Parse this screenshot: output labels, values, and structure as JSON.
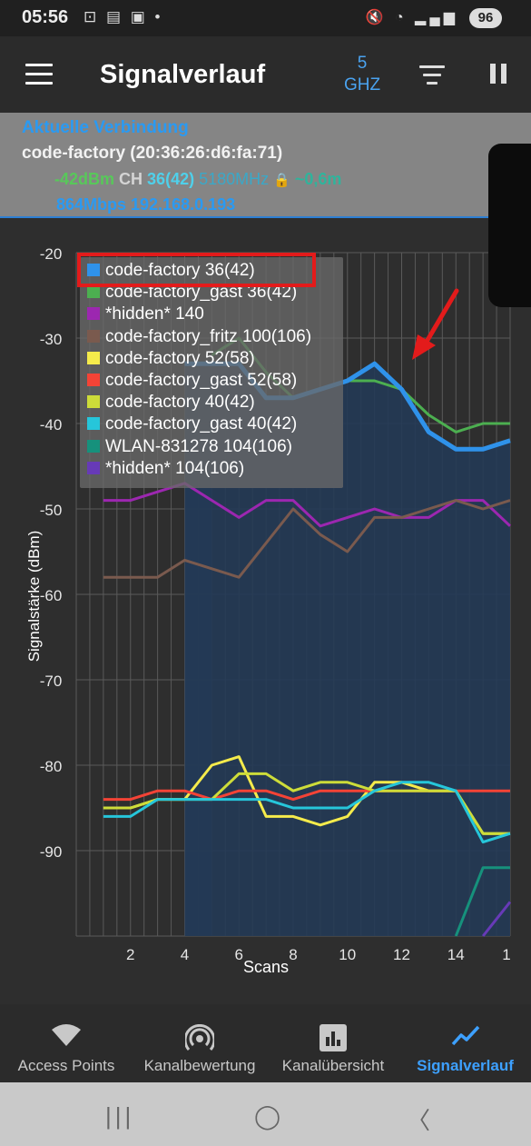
{
  "status_bar": {
    "time": "05:56",
    "battery": "96"
  },
  "app_bar": {
    "title": "Signalverlauf",
    "band_line1": "5",
    "band_line2": "GHZ"
  },
  "connection": {
    "header": "Aktuelle Verbindung",
    "ssid": "code-factory (20:36:26:d6:fa:71)",
    "signal": "-42dBm",
    "ch_label": "CH",
    "channel": "36(42)",
    "frequency": "5180MHz",
    "distance": "~0,6m",
    "speed_ip": "864Mbps 192.168.0.193"
  },
  "chart_data": {
    "type": "line",
    "ylabel": "Signalstärke (dBm)",
    "xlabel": "Scans",
    "ylim": [
      -100,
      -20
    ],
    "yticks": [
      "-20",
      "-30",
      "-40",
      "-50",
      "-60",
      "-70",
      "-80",
      "-90"
    ],
    "xticks": [
      "2",
      "4",
      "6",
      "8",
      "10",
      "12",
      "14",
      "1"
    ],
    "grid": true,
    "legend_position": "top-left",
    "series": [
      {
        "name": "code-factory 36(42)",
        "color": "#2f92ea",
        "x": [
          4,
          5,
          6,
          7,
          8,
          9,
          10,
          11,
          12,
          13,
          14,
          15,
          16
        ],
        "y": [
          -33,
          -33,
          -33,
          -37,
          -37,
          -36,
          -35,
          -33,
          -36,
          -41,
          -43,
          -43,
          -42
        ]
      },
      {
        "name": "code-factory_gast 36(42)",
        "color": "#4caf50",
        "x": [
          5,
          6,
          7,
          8,
          9,
          10,
          11,
          12,
          13,
          14,
          15,
          16
        ],
        "y": [
          -32,
          -30,
          -34,
          -37,
          -36,
          -35,
          -35,
          -36,
          -39,
          -41,
          -40,
          -40
        ]
      },
      {
        "name": "*hidden* 140",
        "color": "#9c27b0",
        "x": [
          1,
          2,
          3,
          4,
          5,
          6,
          7,
          8,
          9,
          10,
          11,
          12,
          13,
          14,
          15,
          16
        ],
        "y": [
          -49,
          -49,
          -48,
          -47,
          -49,
          -51,
          -49,
          -49,
          -52,
          -51,
          -50,
          -51,
          -51,
          -49,
          -49,
          -52
        ]
      },
      {
        "name": "code-factory_fritz 100(106)",
        "color": "#7a5a4e",
        "x": [
          1,
          2,
          3,
          4,
          5,
          6,
          7,
          8,
          9,
          10,
          11,
          12,
          13,
          14,
          15,
          16
        ],
        "y": [
          -58,
          -58,
          -58,
          -56,
          -57,
          -58,
          -54,
          -50,
          -53,
          -55,
          -51,
          -51,
          -50,
          -49,
          -50,
          -49
        ]
      },
      {
        "name": "code-factory 52(58)",
        "color": "#f5eb4b",
        "x": [
          1,
          2,
          3,
          4,
          5,
          6,
          7,
          8,
          9,
          10,
          11,
          12,
          13,
          14,
          15,
          16
        ],
        "y": [
          -85,
          -85,
          -84,
          -84,
          -80,
          -79,
          -86,
          -86,
          -87,
          -86,
          -82,
          -82,
          -83,
          -83,
          -88,
          -88
        ]
      },
      {
        "name": "code-factory_gast 52(58)",
        "color": "#f44336",
        "x": [
          1,
          2,
          3,
          4,
          5,
          6,
          7,
          8,
          9,
          10,
          11,
          12,
          13,
          14,
          15,
          16
        ],
        "y": [
          -84,
          -84,
          -83,
          -83,
          -84,
          -83,
          -83,
          -84,
          -83,
          -83,
          -83,
          -83,
          -83,
          -83,
          -83,
          -83
        ]
      },
      {
        "name": "code-factory 40(42)",
        "color": "#cddc39",
        "x": [
          1,
          2,
          3,
          4,
          5,
          6,
          7,
          8,
          9,
          10,
          11,
          12,
          13,
          14,
          15,
          16
        ],
        "y": [
          -85,
          -85,
          -84,
          -84,
          -84,
          -81,
          -81,
          -83,
          -82,
          -82,
          -83,
          -83,
          -83,
          -83,
          -88,
          -88
        ]
      },
      {
        "name": "code-factory_gast 40(42)",
        "color": "#26c6da",
        "x": [
          1,
          2,
          3,
          4,
          5,
          6,
          7,
          8,
          9,
          10,
          11,
          12,
          13,
          14,
          15,
          16
        ],
        "y": [
          -86,
          -86,
          -84,
          -84,
          -84,
          -84,
          -84,
          -85,
          -85,
          -85,
          -83,
          -82,
          -82,
          -83,
          -89,
          -88
        ]
      },
      {
        "name": "WLAN-831278 104(106)",
        "color": "#16917c",
        "x": [
          14,
          15,
          16
        ],
        "y": [
          -100,
          -92,
          -92
        ]
      },
      {
        "name": "*hidden* 104(106)",
        "color": "#673ab7",
        "x": [
          15,
          16
        ],
        "y": [
          -100,
          -96
        ]
      }
    ]
  },
  "bottom_nav": {
    "items": [
      {
        "label": "Access Points",
        "icon": "wifi-icon"
      },
      {
        "label": "Kanalbewertung",
        "icon": "signal-rings-icon"
      },
      {
        "label": "Kanalübersicht",
        "icon": "bar-chart-icon"
      },
      {
        "label": "Signalverlauf",
        "icon": "line-chart-icon",
        "active": true
      }
    ]
  }
}
